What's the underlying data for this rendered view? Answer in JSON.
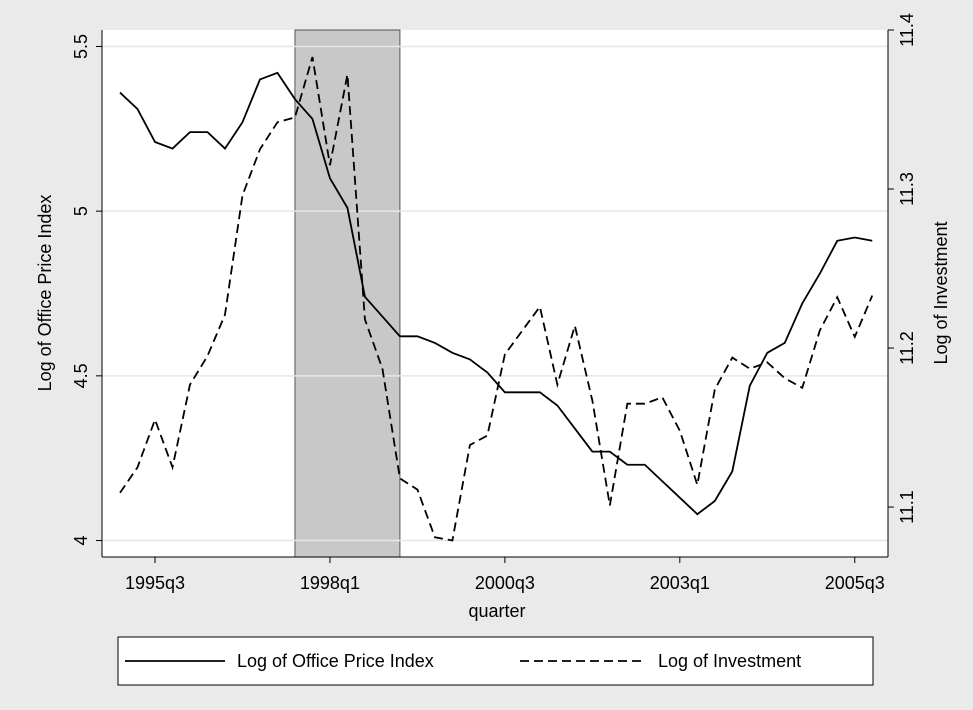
{
  "chart_data": {
    "type": "line",
    "x_label": "quarter",
    "y_label": "Log of Office Price Index",
    "y2_label": "Log of Investment",
    "x": [
      140,
      141,
      142,
      143,
      144,
      145,
      146,
      147,
      148,
      149,
      150,
      151,
      152,
      153,
      154,
      155,
      156,
      157,
      158,
      159,
      160,
      161,
      162,
      163,
      164,
      165,
      166,
      167,
      168,
      169,
      170,
      171,
      172,
      173,
      174,
      175,
      176,
      177,
      178,
      179,
      180,
      181,
      182,
      183
    ],
    "xlim": [
      138.97,
      183.9
    ],
    "xticks": [
      {
        "value": 142,
        "label": "1995q3"
      },
      {
        "value": 152,
        "label": "1998q1"
      },
      {
        "value": 162,
        "label": "2000q3"
      },
      {
        "value": 172,
        "label": "2003q1"
      },
      {
        "value": 182,
        "label": "2005q3"
      }
    ],
    "ylim": [
      3.95,
      5.55
    ],
    "yticks": [
      4,
      4.5,
      5,
      5.5
    ],
    "y2lim": [
      11.0686,
      11.4
    ],
    "y2ticks": [
      11.1,
      11.2,
      11.3,
      11.4
    ],
    "grid": true,
    "shaded_span": [
      150,
      156
    ],
    "shade_color": "#c8c8c8",
    "legend": "bottom",
    "series": [
      {
        "name": "Log of Office Price Index",
        "color": "#000000",
        "line_style": "solid",
        "axis": "y",
        "values": [
          5.36,
          5.31,
          5.21,
          5.19,
          5.24,
          5.24,
          5.19,
          5.27,
          5.4,
          5.42,
          5.34,
          5.28,
          5.1,
          5.01,
          4.74,
          4.68,
          4.62,
          4.62,
          4.6,
          4.57,
          4.55,
          4.51,
          4.45,
          4.45,
          4.45,
          4.41,
          4.34,
          4.27,
          4.27,
          4.23,
          4.23,
          4.18,
          4.13,
          4.08,
          4.12,
          4.21,
          4.47,
          4.57,
          4.6,
          4.72,
          4.81,
          4.91,
          4.92,
          4.91
        ]
      },
      {
        "name": "Log of Investment",
        "color": "#000000",
        "line_style": "dashed",
        "axis": "y2",
        "values": [
          11.109,
          11.125,
          11.155,
          11.125,
          11.177,
          11.195,
          11.221,
          11.296,
          11.325,
          11.342,
          11.345,
          11.383,
          11.315,
          11.372,
          11.218,
          11.187,
          11.118,
          11.111,
          11.081,
          11.079,
          11.139,
          11.145,
          11.196,
          11.211,
          11.226,
          11.177,
          11.214,
          11.167,
          11.101,
          11.165,
          11.165,
          11.169,
          11.148,
          11.114,
          11.174,
          11.194,
          11.187,
          11.191,
          11.181,
          11.175,
          11.211,
          11.232,
          11.207,
          11.233
        ]
      }
    ]
  }
}
